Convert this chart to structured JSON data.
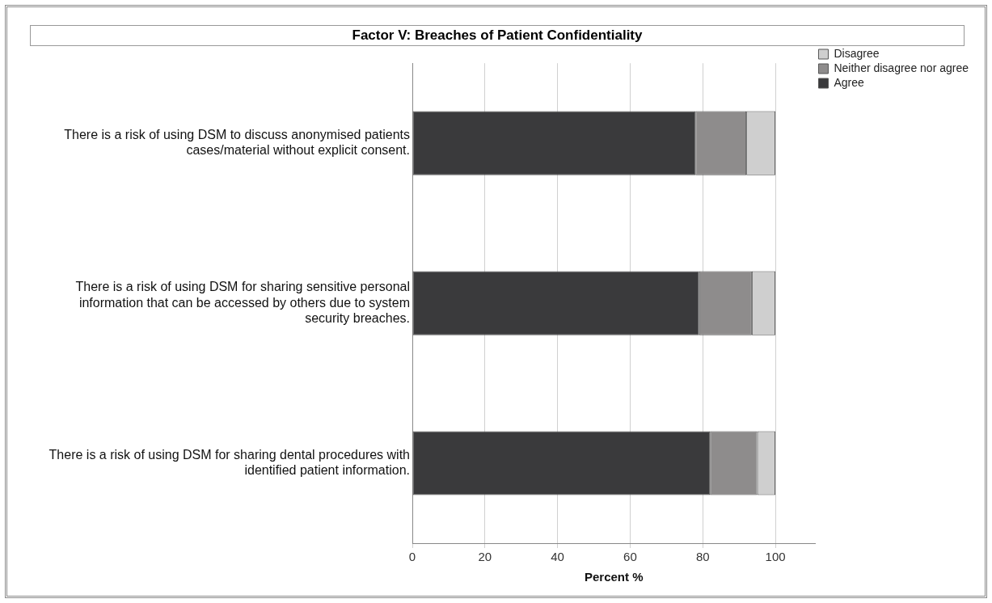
{
  "chart_data": {
    "type": "bar",
    "orientation": "horizontal",
    "stacked": true,
    "title": "Factor V: Breaches of Patient Confidentiality",
    "xlabel": "Percent %",
    "categories": [
      "There is a risk of using DSM to discuss anonymised patients cases/material without explicit consent.",
      "There is a risk of using DSM for sharing sensitive personal information that can be accessed by others due to system security breaches.",
      "There is a risk of using DSM for sharing dental procedures with identified patient information."
    ],
    "series": [
      {
        "name": "Agree",
        "color": "#3a3a3c",
        "values": [
          78,
          79,
          82
        ]
      },
      {
        "name": "Neither disagree nor agree",
        "color": "#8e8c8c",
        "values": [
          14,
          14.5,
          13
        ]
      },
      {
        "name": "Disagree",
        "color": "#cfcfcf",
        "values": [
          8,
          6.5,
          5
        ]
      }
    ],
    "xlim": [
      0,
      111
    ],
    "xticks": [
      0,
      20,
      40,
      60,
      80,
      100
    ],
    "grid": "x",
    "legend": "top right"
  }
}
